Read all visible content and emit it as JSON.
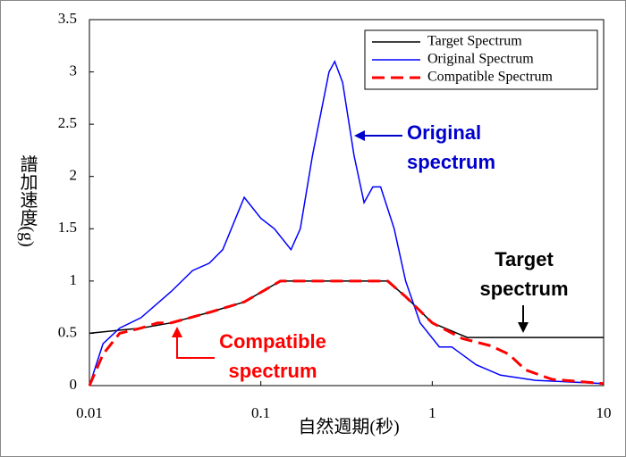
{
  "chart_data": {
    "type": "line",
    "x_label": "自然週期(秒)",
    "y_label": "譜加速度(g)",
    "xscale": "log",
    "xlim": [
      0.01,
      10
    ],
    "xticks": [
      0.01,
      0.1,
      1,
      10
    ],
    "ylim": [
      0,
      3.5
    ],
    "yticks": [
      0,
      0.5,
      1,
      1.5,
      2,
      2.5,
      3,
      3.5
    ],
    "legend": "upper right",
    "series": [
      {
        "name": "Target Spectrum",
        "color": "#000000",
        "dash": "solid",
        "x": [
          0.01,
          0.015,
          0.02,
          0.03,
          0.05,
          0.08,
          0.13,
          0.3,
          0.55,
          0.7,
          1.0,
          1.6,
          3,
          10
        ],
        "values": [
          0.5,
          0.53,
          0.55,
          0.6,
          0.7,
          0.8,
          1.0,
          1.0,
          1.0,
          0.85,
          0.6,
          0.46,
          0.46,
          0.46
        ]
      },
      {
        "name": "Original Spectrum",
        "color": "#0000ff",
        "dash": "solid",
        "x": [
          0.01,
          0.012,
          0.015,
          0.02,
          0.03,
          0.04,
          0.05,
          0.06,
          0.08,
          0.1,
          0.12,
          0.15,
          0.17,
          0.2,
          0.25,
          0.27,
          0.3,
          0.35,
          0.4,
          0.45,
          0.5,
          0.6,
          0.7,
          0.85,
          1.1,
          1.3,
          1.8,
          2.5,
          4,
          10
        ],
        "values": [
          0,
          0.4,
          0.55,
          0.65,
          0.9,
          1.1,
          1.17,
          1.3,
          1.8,
          1.6,
          1.5,
          1.3,
          1.5,
          2.2,
          3.0,
          3.1,
          2.9,
          2.2,
          1.75,
          1.9,
          1.9,
          1.5,
          1.0,
          0.6,
          0.37,
          0.37,
          0.2,
          0.1,
          0.05,
          0.02
        ]
      },
      {
        "name": "Compatible Spectrum",
        "color": "#ff0000",
        "dash": "dashed",
        "x": [
          0.01,
          0.012,
          0.015,
          0.02,
          0.025,
          0.03,
          0.05,
          0.08,
          0.13,
          0.3,
          0.55,
          0.7,
          1.0,
          1.5,
          2.2,
          2.8,
          3.5,
          5,
          10
        ],
        "values": [
          0,
          0.3,
          0.5,
          0.55,
          0.6,
          0.6,
          0.7,
          0.8,
          1.0,
          1.0,
          1.0,
          0.85,
          0.6,
          0.45,
          0.38,
          0.3,
          0.15,
          0.06,
          0.02
        ]
      }
    ],
    "annotations": [
      {
        "lines": [
          "Original",
          "spectrum"
        ],
        "color": "#0000cc"
      },
      {
        "lines": [
          "Target",
          "spectrum"
        ],
        "color": "#000000"
      },
      {
        "lines": [
          "Compatible",
          "spectrum"
        ],
        "color": "#ff0000"
      }
    ]
  }
}
